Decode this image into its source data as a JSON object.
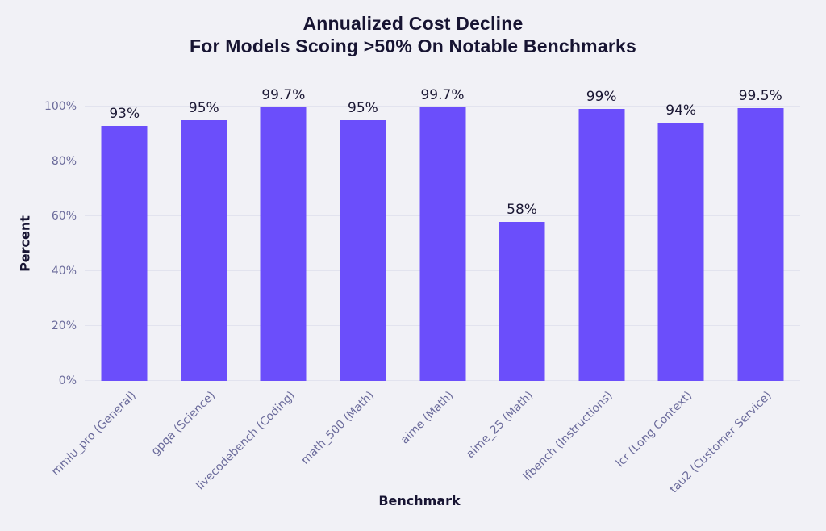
{
  "chart_data": {
    "type": "bar",
    "title_line1": "Annualized Cost Decline",
    "title_line2": "For Models Scoing >50% On Notable Benchmarks",
    "xlabel": "Benchmark",
    "ylabel": "Percent",
    "ylim": [
      0,
      100
    ],
    "grid": "horizontal",
    "legend_position": "none",
    "categories": [
      "mmlu_pro (General)",
      "gpqa (Science)",
      "livecodebench (Coding)",
      "math_500 (Math)",
      "aime (Math)",
      "aime_25 (Math)",
      "ifbench (Instructions)",
      "lcr (Long Context)",
      "tau2 (Customer Service)"
    ],
    "values": [
      93,
      95,
      99.7,
      95,
      99.7,
      58,
      99,
      94,
      99.5
    ],
    "value_labels": [
      "93%",
      "95%",
      "99.7%",
      "95%",
      "99.7%",
      "58%",
      "99%",
      "94%",
      "99.5%"
    ],
    "yticks": [
      {
        "value": 0,
        "label": "0%"
      },
      {
        "value": 20,
        "label": "20%"
      },
      {
        "value": 40,
        "label": "40%"
      },
      {
        "value": 60,
        "label": "60%"
      },
      {
        "value": 80,
        "label": "80%"
      },
      {
        "value": 100,
        "label": "100%"
      }
    ],
    "colors": {
      "bar": "#6B4EFB",
      "background": "#F1F1F6",
      "gridline": "#E2E3EE",
      "title_text": "#171432",
      "tick_text": "#6B6B9B",
      "value_text": "#1A1733"
    }
  }
}
